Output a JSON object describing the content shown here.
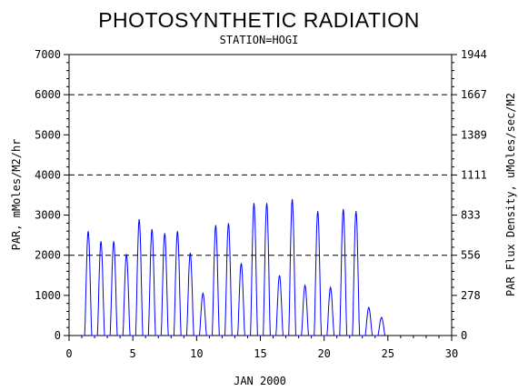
{
  "chart_data": {
    "type": "line",
    "title": "PHOTOSYNTHETIC RADIATION",
    "subtitle": "STATION=HOGI",
    "xlabel": "JAN 2000",
    "ylabel": "PAR, mMoles/M2/hr",
    "ylabel_right": "PAR Flux Density, uMoles/sec/M2",
    "xlim": [
      0,
      30
    ],
    "ylim": [
      0,
      7000
    ],
    "x_ticks": [
      "0",
      "5",
      "10",
      "15",
      "20",
      "25",
      "30"
    ],
    "y_ticks": [
      "0",
      "1000",
      "2000",
      "3000",
      "4000",
      "5000",
      "6000",
      "7000"
    ],
    "y_ticks_right": [
      "0",
      "278",
      "556",
      "833",
      "1111",
      "1389",
      "1667",
      "1944"
    ],
    "reference_lines": [
      2000,
      4000,
      6000
    ],
    "series_color": "#0000ff",
    "daily_peaks": [
      {
        "day": 1.5,
        "value": 2600
      },
      {
        "day": 2.5,
        "value": 2350
      },
      {
        "day": 3.5,
        "value": 2350
      },
      {
        "day": 4.5,
        "value": 2030
      },
      {
        "day": 5.5,
        "value": 2900
      },
      {
        "day": 6.5,
        "value": 2650
      },
      {
        "day": 7.5,
        "value": 2550
      },
      {
        "day": 8.5,
        "value": 2600
      },
      {
        "day": 9.5,
        "value": 2060
      },
      {
        "day": 10.5,
        "value": 1050
      },
      {
        "day": 11.5,
        "value": 2750
      },
      {
        "day": 12.5,
        "value": 2800
      },
      {
        "day": 13.5,
        "value": 1800
      },
      {
        "day": 14.5,
        "value": 3300
      },
      {
        "day": 15.5,
        "value": 3300
      },
      {
        "day": 16.5,
        "value": 1500
      },
      {
        "day": 17.5,
        "value": 3400
      },
      {
        "day": 18.5,
        "value": 1250
      },
      {
        "day": 19.5,
        "value": 3100
      },
      {
        "day": 20.5,
        "value": 1200
      },
      {
        "day": 21.5,
        "value": 3150
      },
      {
        "day": 22.5,
        "value": 3100
      },
      {
        "day": 23.5,
        "value": 700
      },
      {
        "day": 24.5,
        "value": 450
      }
    ]
  }
}
